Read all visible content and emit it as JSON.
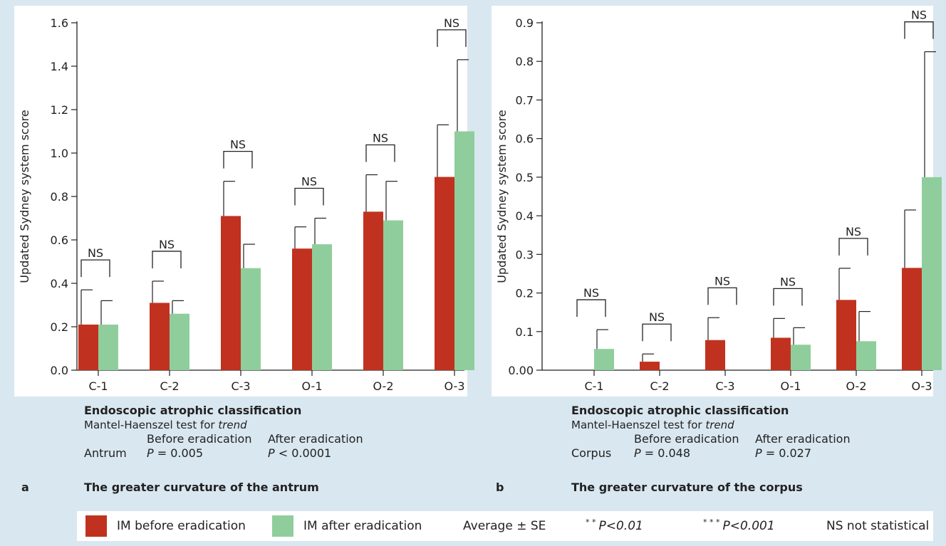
{
  "colors": {
    "before": "#c0321f",
    "after": "#8fce9c",
    "axis": "#222222"
  },
  "legend": {
    "before_label": "IM before eradication",
    "after_label": "IM after eradication",
    "average_label": "Average ± SE",
    "p01_stars": "* *",
    "p01_text": "P<0.01",
    "p001_stars": "* * *",
    "p001_text": "P<0.001",
    "ns_label": "NS  not statistical"
  },
  "chart_data": [
    {
      "type": "bar",
      "panel_letter": "a",
      "ylabel": "Updated Sydney system score",
      "ylim": [
        0,
        1.6
      ],
      "yticks": [
        "0.0",
        "0.2",
        "0.4",
        "0.6",
        "0.8",
        "1.0",
        "1.2",
        "1.4",
        "1.6"
      ],
      "categories": [
        "C-1",
        "C-2",
        "C-3",
        "O-1",
        "O-2",
        "O-3"
      ],
      "series": [
        {
          "name": "IM before eradication",
          "values": [
            0.21,
            0.31,
            0.71,
            0.56,
            0.73,
            0.89
          ],
          "errors": [
            0.16,
            0.1,
            0.16,
            0.1,
            0.17,
            0.24
          ]
        },
        {
          "name": "IM after eradication",
          "values": [
            0.21,
            0.26,
            0.47,
            0.58,
            0.69,
            1.1
          ],
          "errors": [
            0.11,
            0.06,
            0.11,
            0.12,
            0.18,
            0.33
          ]
        }
      ],
      "significance": [
        "NS",
        "NS",
        "NS",
        "NS",
        "NS",
        "NS"
      ],
      "info": {
        "title": "Endoscopic atrophic classification",
        "test_prefix": "Mantel-Haenszel test for ",
        "test_italic": "trend",
        "col1_header": "Before eradication",
        "col2_header": "After eradication",
        "site": "Antrum",
        "p_symbol": "P",
        "p_before": "= 0.005",
        "p_after": "< 0.0001",
        "subtitle": "The greater curvature of the antrum"
      }
    },
    {
      "type": "bar",
      "panel_letter": "b",
      "ylabel": "Updated Sydney system score",
      "ylim": [
        0,
        0.9
      ],
      "yticks": [
        "0.00",
        "0.1",
        "0.2",
        "0.3",
        "0.4",
        "0.5",
        "0.6",
        "0.7",
        "0.8",
        "0.9"
      ],
      "categories": [
        "C-1",
        "C-2",
        "C-3",
        "O-1",
        "O-2",
        "O-3"
      ],
      "series": [
        {
          "name": "IM before eradication",
          "values": [
            0,
            0.022,
            0.078,
            0.084,
            0.182,
            0.265
          ],
          "errors": [
            0,
            0.02,
            0.058,
            0.05,
            0.082,
            0.15
          ]
        },
        {
          "name": "IM after eradication",
          "values": [
            0.055,
            0,
            0,
            0.066,
            0.075,
            0.5
          ],
          "errors": [
            0.05,
            0,
            0,
            0.044,
            0.077,
            0.325
          ]
        }
      ],
      "significance": [
        "NS",
        "NS",
        "NS",
        "NS",
        "NS",
        "NS"
      ],
      "info": {
        "title": "Endoscopic atrophic classification",
        "test_prefix": "Mantel-Haenszel test for ",
        "test_italic": "trend",
        "col1_header": "Before eradication",
        "col2_header": "After eradication",
        "site": "Corpus",
        "p_symbol": "P",
        "p_before": "= 0.048",
        "p_after": "= 0.027",
        "subtitle": "The greater curvature of the corpus"
      }
    }
  ]
}
